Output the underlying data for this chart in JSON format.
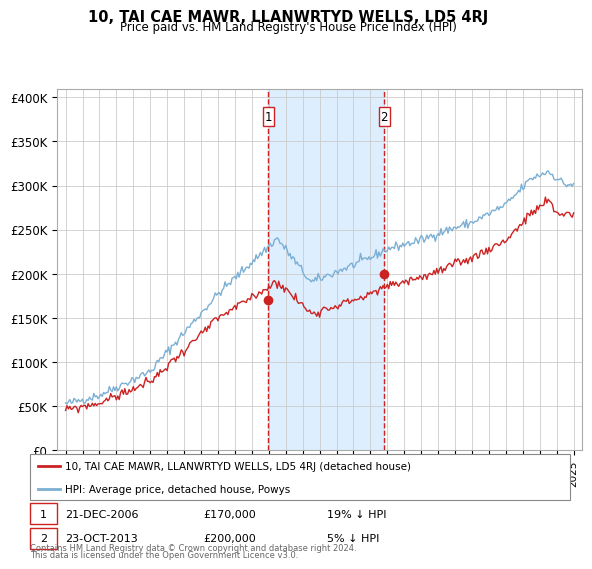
{
  "title": "10, TAI CAE MAWR, LLANWRTYD WELLS, LD5 4RJ",
  "subtitle": "Price paid vs. HM Land Registry's House Price Index (HPI)",
  "ylabel_ticks": [
    "£0",
    "£50K",
    "£100K",
    "£150K",
    "£200K",
    "£250K",
    "£300K",
    "£350K",
    "£400K"
  ],
  "ytick_vals": [
    0,
    50000,
    100000,
    150000,
    200000,
    250000,
    300000,
    350000,
    400000
  ],
  "ylim": [
    0,
    410000
  ],
  "xlim_start": 1994.5,
  "xlim_end": 2025.5,
  "sale1_date": 2006.97,
  "sale1_price": 170000,
  "sale1_label": "1",
  "sale2_date": 2013.81,
  "sale2_price": 200000,
  "sale2_label": "2",
  "legend_line1": "10, TAI CAE MAWR, LLANWRTYD WELLS, LD5 4RJ (detached house)",
  "legend_line2": "HPI: Average price, detached house, Powys",
  "footer": "Contains HM Land Registry data © Crown copyright and database right 2024.\nThis data is licensed under the Open Government Licence v3.0.",
  "hpi_color": "#7bafd4",
  "price_color": "#cc2222",
  "shaded_color": "#ddeeff",
  "grid_color": "#cccccc",
  "annotation_box_color": "#cc2222"
}
